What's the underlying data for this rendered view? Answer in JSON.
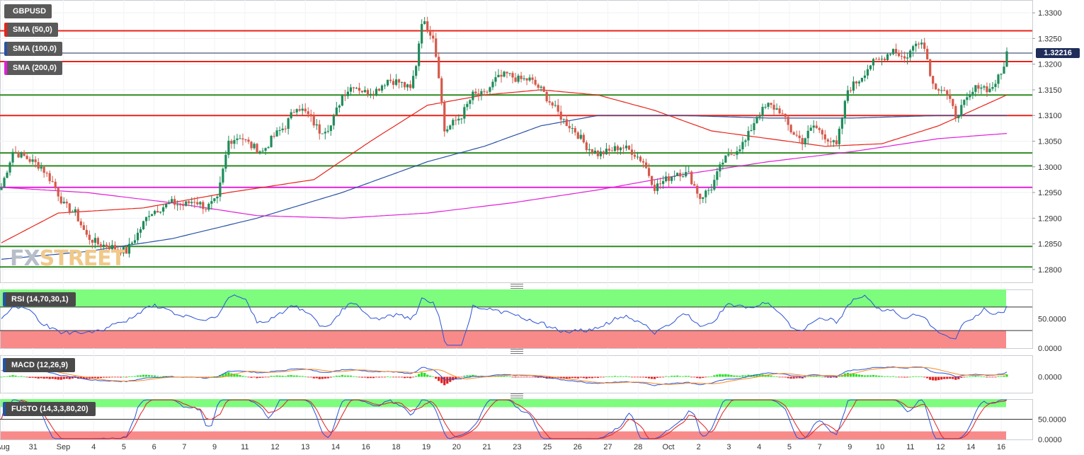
{
  "symbol": "GBPUSD",
  "current_price": "1.32216",
  "watermark": {
    "part1": "FX",
    "part2": "STREET"
  },
  "overlays": [
    {
      "label": "SMA (50,0)",
      "color": "#e8231a"
    },
    {
      "label": "SMA (100,0)",
      "color": "#2a52a6"
    },
    {
      "label": "SMA (200,0)",
      "color": "#e020d8"
    }
  ],
  "indicators": {
    "rsi": {
      "label": "RSI (14,70,30,1)",
      "ticks": [
        "50.0000",
        "0.0000"
      ]
    },
    "macd": {
      "label": "MACD (12,26,9)",
      "ticks": [
        "0.0000"
      ]
    },
    "fusto": {
      "label": "FUSTO (14,3,3,80,20)",
      "ticks": [
        "50.0000",
        "0.0000"
      ]
    }
  },
  "chart_data": {
    "type": "candlestick",
    "y_ticks": [
      "1.3300",
      "1.3250",
      "1.3200",
      "1.3150",
      "1.3100",
      "1.3050",
      "1.3000",
      "1.2950",
      "1.2900",
      "1.2850",
      "1.2800"
    ],
    "ylim": [
      1.2775,
      1.3325
    ],
    "x_labels": [
      "Aug",
      "31",
      "Sep",
      "4",
      "5",
      "6",
      "7",
      "9",
      "11",
      "12",
      "13",
      "14",
      "16",
      "18",
      "19",
      "20",
      "21",
      "23",
      "25",
      "26",
      "27",
      "28",
      "Oct",
      "2",
      "3",
      "4",
      "5",
      "7",
      "9",
      "10",
      "11",
      "12",
      "14",
      "16"
    ],
    "horizontal_levels": [
      {
        "value": 1.3265,
        "color": "#e8231a"
      },
      {
        "value": 1.3205,
        "color": "#e8231a"
      },
      {
        "value": 1.314,
        "color": "#2e8b20"
      },
      {
        "value": 1.31,
        "color": "#e8231a"
      },
      {
        "value": 1.3027,
        "color": "#2e8b20"
      },
      {
        "value": 1.3002,
        "color": "#2e8b20"
      },
      {
        "value": 1.296,
        "color": "#e020d8"
      },
      {
        "value": 1.2845,
        "color": "#2e8b20"
      },
      {
        "value": 1.2805,
        "color": "#2e8b20"
      }
    ],
    "close_anchors": [
      [
        0,
        1.296
      ],
      [
        4,
        1.303
      ],
      [
        8,
        1.302
      ],
      [
        14,
        1.3
      ],
      [
        18,
        1.297
      ],
      [
        22,
        1.2925
      ],
      [
        26,
        1.291
      ],
      [
        30,
        1.2865
      ],
      [
        34,
        1.285
      ],
      [
        38,
        1.2845
      ],
      [
        44,
        1.2835
      ],
      [
        48,
        1.287
      ],
      [
        52,
        1.291
      ],
      [
        56,
        1.292
      ],
      [
        60,
        1.293
      ],
      [
        64,
        1.2925
      ],
      [
        68,
        1.2935
      ],
      [
        72,
        1.292
      ],
      [
        76,
        1.2935
      ],
      [
        80,
        1.305
      ],
      [
        84,
        1.306
      ],
      [
        88,
        1.304
      ],
      [
        92,
        1.303
      ],
      [
        96,
        1.306
      ],
      [
        100,
        1.308
      ],
      [
        104,
        1.312
      ],
      [
        108,
        1.31
      ],
      [
        112,
        1.307
      ],
      [
        116,
        1.308
      ],
      [
        120,
        1.314
      ],
      [
        124,
        1.316
      ],
      [
        128,
        1.3145
      ],
      [
        132,
        1.315
      ],
      [
        136,
        1.317
      ],
      [
        140,
        1.3165
      ],
      [
        144,
        1.315
      ],
      [
        146,
        1.32
      ],
      [
        148,
        1.3285
      ],
      [
        150,
        1.327
      ],
      [
        152,
        1.3255
      ],
      [
        154,
        1.318
      ],
      [
        156,
        1.307
      ],
      [
        158,
        1.308
      ],
      [
        162,
        1.31
      ],
      [
        166,
        1.314
      ],
      [
        170,
        1.314
      ],
      [
        174,
        1.317
      ],
      [
        178,
        1.318
      ],
      [
        182,
        1.317
      ],
      [
        186,
        1.317
      ],
      [
        190,
        1.315
      ],
      [
        194,
        1.312
      ],
      [
        198,
        1.309
      ],
      [
        202,
        1.307
      ],
      [
        206,
        1.304
      ],
      [
        210,
        1.3025
      ],
      [
        214,
        1.303
      ],
      [
        218,
        1.304
      ],
      [
        222,
        1.303
      ],
      [
        226,
        1.301
      ],
      [
        230,
        1.296
      ],
      [
        234,
        1.2975
      ],
      [
        238,
        1.299
      ],
      [
        242,
        1.2985
      ],
      [
        246,
        1.294
      ],
      [
        250,
        1.296
      ],
      [
        254,
        1.301
      ],
      [
        258,
        1.303
      ],
      [
        262,
        1.305
      ],
      [
        266,
        1.31
      ],
      [
        270,
        1.312
      ],
      [
        274,
        1.311
      ],
      [
        278,
        1.307
      ],
      [
        282,
        1.305
      ],
      [
        286,
        1.308
      ],
      [
        290,
        1.306
      ],
      [
        294,
        1.304
      ],
      [
        298,
        1.315
      ],
      [
        302,
        1.317
      ],
      [
        306,
        1.32
      ],
      [
        310,
        1.321
      ],
      [
        314,
        1.323
      ],
      [
        318,
        1.321
      ],
      [
        322,
        1.324
      ],
      [
        324,
        1.325
      ],
      [
        326,
        1.321
      ],
      [
        328,
        1.316
      ],
      [
        332,
        1.315
      ],
      [
        336,
        1.31
      ],
      [
        340,
        1.313
      ],
      [
        344,
        1.316
      ],
      [
        348,
        1.315
      ],
      [
        352,
        1.318
      ],
      [
        354,
        1.3222
      ]
    ],
    "candle_count": 355,
    "sma50": [
      [
        0,
        1.2852
      ],
      [
        20,
        1.291
      ],
      [
        50,
        1.292
      ],
      [
        80,
        1.295
      ],
      [
        110,
        1.2975
      ],
      [
        130,
        1.305
      ],
      [
        150,
        1.312
      ],
      [
        170,
        1.314
      ],
      [
        190,
        1.315
      ],
      [
        210,
        1.314
      ],
      [
        230,
        1.311
      ],
      [
        250,
        1.307
      ],
      [
        270,
        1.3055
      ],
      [
        290,
        1.304
      ],
      [
        310,
        1.3045
      ],
      [
        330,
        1.308
      ],
      [
        354,
        1.314
      ]
    ],
    "sma100": [
      [
        0,
        1.282
      ],
      [
        30,
        1.2835
      ],
      [
        60,
        1.286
      ],
      [
        90,
        1.29
      ],
      [
        120,
        1.295
      ],
      [
        150,
        1.301
      ],
      [
        170,
        1.304
      ],
      [
        190,
        1.308
      ],
      [
        210,
        1.31
      ],
      [
        240,
        1.31
      ],
      [
        270,
        1.3095
      ],
      [
        300,
        1.3095
      ],
      [
        330,
        1.31
      ],
      [
        354,
        1.31
      ]
    ],
    "sma200": [
      [
        0,
        1.296
      ],
      [
        30,
        1.295
      ],
      [
        60,
        1.293
      ],
      [
        90,
        1.2905
      ],
      [
        120,
        1.29
      ],
      [
        150,
        1.291
      ],
      [
        180,
        1.293
      ],
      [
        210,
        1.2955
      ],
      [
        240,
        1.2985
      ],
      [
        270,
        1.301
      ],
      [
        300,
        1.303
      ],
      [
        330,
        1.3055
      ],
      [
        354,
        1.3065
      ]
    ]
  }
}
